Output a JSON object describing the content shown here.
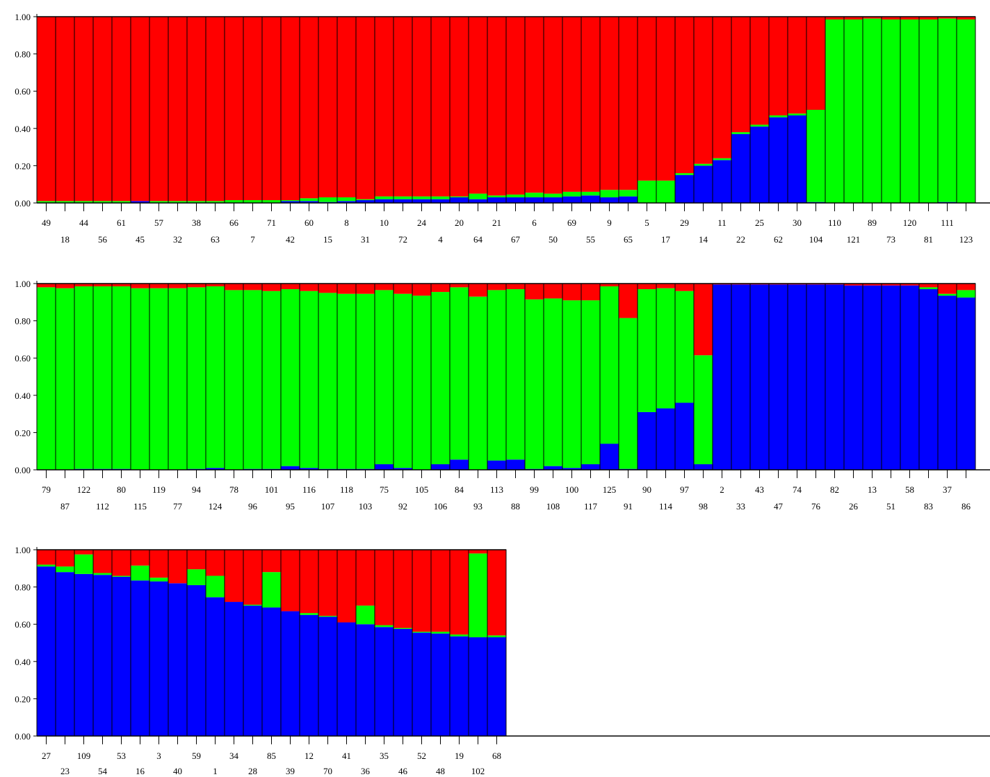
{
  "chart_data": [
    {
      "type": "bar",
      "stacked": true,
      "ylim": [
        0,
        1
      ],
      "yticks": [
        "0.00",
        "0.20",
        "0.40",
        "0.60",
        "0.80",
        "1.00"
      ],
      "categories": [
        "49",
        "18",
        "44",
        "56",
        "61",
        "45",
        "57",
        "32",
        "38",
        "63",
        "66",
        "7",
        "71",
        "42",
        "60",
        "15",
        "8",
        "31",
        "10",
        "72",
        "24",
        "4",
        "20",
        "64",
        "21",
        "67",
        "6",
        "50",
        "69",
        "55",
        "9",
        "65",
        "5",
        "17",
        "29",
        "14",
        "11",
        "22",
        "25",
        "62",
        "30",
        "104",
        "110",
        "121",
        "89",
        "73",
        "120",
        "81",
        "111",
        "123"
      ],
      "series": [
        {
          "color": "#0000ff",
          "values": [
            0,
            0,
            0,
            0,
            0,
            0.01,
            0,
            0,
            0,
            0,
            0,
            0,
            0,
            0.01,
            0.01,
            0.005,
            0.01,
            0.015,
            0.02,
            0.02,
            0.02,
            0.02,
            0.03,
            0.02,
            0.03,
            0.03,
            0.03,
            0.03,
            0.035,
            0.04,
            0.03,
            0.035,
            0,
            0,
            0.15,
            0.2,
            0.23,
            0.37,
            0.41,
            0.46,
            0.47,
            0.005,
            0,
            0,
            0,
            0,
            0,
            0,
            0.005,
            0
          ]
        },
        {
          "color": "#00ff00",
          "values": [
            0.01,
            0.01,
            0.01,
            0.01,
            0.01,
            0,
            0.01,
            0.01,
            0.01,
            0.01,
            0.015,
            0.015,
            0.015,
            0.005,
            0.015,
            0.025,
            0.02,
            0.005,
            0.015,
            0.015,
            0.015,
            0.015,
            0.005,
            0.03,
            0.01,
            0.015,
            0.025,
            0.02,
            0.025,
            0.02,
            0.04,
            0.035,
            0.12,
            0.12,
            0.01,
            0.01,
            0.01,
            0.01,
            0.01,
            0.01,
            0.01,
            0.495,
            0.985,
            0.985,
            0.99,
            0.985,
            0.985,
            0.985,
            0.985,
            0.985
          ]
        },
        {
          "color": "#ff0000",
          "values": [
            0.99,
            0.99,
            0.99,
            0.99,
            0.99,
            0.99,
            0.99,
            0.99,
            0.99,
            0.99,
            0.985,
            0.985,
            0.985,
            0.985,
            0.975,
            0.97,
            0.97,
            0.98,
            0.965,
            0.965,
            0.965,
            0.965,
            0.965,
            0.95,
            0.96,
            0.955,
            0.945,
            0.95,
            0.94,
            0.94,
            0.93,
            0.93,
            0.88,
            0.88,
            0.84,
            0.79,
            0.76,
            0.62,
            0.58,
            0.53,
            0.52,
            0.5,
            0.015,
            0.015,
            0.01,
            0.015,
            0.015,
            0.015,
            0.01,
            0.015
          ]
        }
      ]
    },
    {
      "type": "bar",
      "stacked": true,
      "ylim": [
        0,
        1
      ],
      "yticks": [
        "0.00",
        "0.20",
        "0.40",
        "0.60",
        "0.80",
        "1.00"
      ],
      "categories": [
        "79",
        "87",
        "122",
        "112",
        "80",
        "115",
        "119",
        "77",
        "94",
        "124",
        "78",
        "96",
        "101",
        "95",
        "116",
        "107",
        "118",
        "103",
        "75",
        "92",
        "105",
        "106",
        "84",
        "93",
        "113",
        "88",
        "99",
        "108",
        "100",
        "117",
        "125",
        "91",
        "90",
        "114",
        "97",
        "98",
        "2",
        "33",
        "43",
        "47",
        "74",
        "76",
        "82",
        "26",
        "13",
        "51",
        "58",
        "83",
        "37",
        "86"
      ],
      "series": [
        {
          "color": "#0000ff",
          "values": [
            0,
            0,
            0.005,
            0.005,
            0.005,
            0,
            0,
            0,
            0.005,
            0.01,
            0,
            0.005,
            0.005,
            0.02,
            0.01,
            0.005,
            0.005,
            0.005,
            0.03,
            0.01,
            0,
            0.03,
            0.055,
            0,
            0.05,
            0.055,
            0.005,
            0.02,
            0.01,
            0.03,
            0.14,
            0.005,
            0.31,
            0.33,
            0.36,
            0.03,
            0.995,
            0.995,
            0.995,
            0.995,
            0.995,
            0.995,
            0.995,
            0.99,
            0.99,
            0.99,
            0.99,
            0.97,
            0.935,
            0.925
          ]
        },
        {
          "color": "#00ff00",
          "values": [
            0.98,
            0.975,
            0.98,
            0.98,
            0.98,
            0.975,
            0.975,
            0.975,
            0.975,
            0.975,
            0.965,
            0.96,
            0.955,
            0.95,
            0.95,
            0.945,
            0.94,
            0.94,
            0.935,
            0.935,
            0.935,
            0.925,
            0.925,
            0.93,
            0.915,
            0.915,
            0.91,
            0.9,
            0.9,
            0.88,
            0.845,
            0.81,
            0.66,
            0.645,
            0.6,
            0.585,
            0,
            0,
            0,
            0,
            0,
            0,
            0,
            0,
            0,
            0,
            0,
            0.01,
            0.01,
            0.04
          ]
        },
        {
          "color": "#ff0000",
          "values": [
            0.02,
            0.025,
            0.015,
            0.015,
            0.015,
            0.025,
            0.025,
            0.025,
            0.02,
            0.015,
            0.035,
            0.035,
            0.04,
            0.03,
            0.04,
            0.05,
            0.055,
            0.055,
            0.035,
            0.055,
            0.065,
            0.045,
            0.02,
            0.07,
            0.035,
            0.03,
            0.085,
            0.08,
            0.09,
            0.09,
            0.015,
            0.185,
            0.03,
            0.025,
            0.04,
            0.385,
            0.005,
            0.005,
            0.005,
            0.005,
            0.005,
            0.005,
            0.005,
            0.01,
            0.01,
            0.01,
            0.01,
            0.02,
            0.055,
            0.035
          ]
        }
      ]
    },
    {
      "type": "bar",
      "stacked": true,
      "ylim": [
        0,
        1
      ],
      "yticks": [
        "0.00",
        "0.20",
        "0.40",
        "0.60",
        "0.80",
        "1.00"
      ],
      "categories": [
        "27",
        "23",
        "109",
        "54",
        "53",
        "16",
        "3",
        "40",
        "59",
        "1",
        "34",
        "28",
        "85",
        "39",
        "12",
        "70",
        "41",
        "36",
        "35",
        "46",
        "52",
        "48",
        "19",
        "102",
        "68"
      ],
      "series": [
        {
          "color": "#0000ff",
          "values": [
            0.91,
            0.88,
            0.87,
            0.865,
            0.855,
            0.835,
            0.83,
            0.82,
            0.81,
            0.745,
            0.72,
            0.7,
            0.69,
            0.67,
            0.65,
            0.64,
            0.61,
            0.6,
            0.585,
            0.575,
            0.555,
            0.55,
            0.535,
            0.53,
            0.53
          ]
        },
        {
          "color": "#00ff00",
          "values": [
            0.01,
            0.03,
            0.105,
            0.01,
            0.005,
            0.08,
            0.02,
            0,
            0.085,
            0.115,
            0,
            0.005,
            0.19,
            0,
            0.01,
            0.005,
            0,
            0.1,
            0.01,
            0.005,
            0.005,
            0.01,
            0.01,
            0.45,
            0.01
          ]
        },
        {
          "color": "#ff0000",
          "values": [
            0.08,
            0.09,
            0.025,
            0.125,
            0.14,
            0.085,
            0.15,
            0.18,
            0.105,
            0.14,
            0.28,
            0.295,
            0.12,
            0.33,
            0.34,
            0.355,
            0.39,
            0.3,
            0.405,
            0.42,
            0.44,
            0.44,
            0.455,
            0.02,
            0.46
          ]
        }
      ]
    }
  ]
}
